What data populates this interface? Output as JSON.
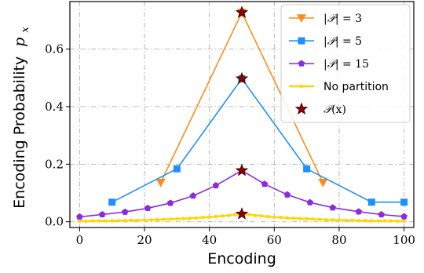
{
  "chart_data": {
    "type": "line",
    "xlabel": "Encoding",
    "ylabel": "Encoding Probability",
    "ylabel_math": "p",
    "ylabel_sub": "x",
    "xlim": [
      -3,
      103
    ],
    "ylim": [
      -0.02,
      0.765
    ],
    "xticks": [
      0,
      20,
      40,
      60,
      80,
      100
    ],
    "yticks": [
      0.0,
      0.2,
      0.4,
      0.6
    ],
    "xtick_labels": [
      "0",
      "20",
      "40",
      "60",
      "80",
      "100"
    ],
    "ytick_labels": [
      "0.0",
      "0.2",
      "0.4",
      "0.6"
    ],
    "grid": true,
    "legend_position": "top-right",
    "series": [
      {
        "name": "|𝒫| = 3",
        "color": "#ff8c1a",
        "marker": "triangle-down",
        "x": [
          25,
          50,
          75
        ],
        "values": [
          0.136,
          0.727,
          0.136
        ]
      },
      {
        "name": "|𝒫| = 5",
        "color": "#1e90ff",
        "marker": "square",
        "x": [
          10,
          30,
          50,
          70,
          90,
          100
        ],
        "values": [
          0.068,
          0.184,
          0.497,
          0.184,
          0.068,
          0.068
        ]
      },
      {
        "name": "|𝒫| = 15",
        "color": "#8a2be2",
        "marker": "pentagon",
        "x": [
          0,
          7,
          14,
          21,
          28,
          35,
          42,
          50,
          57,
          64,
          71,
          78,
          86,
          93,
          100
        ],
        "values": [
          0.017,
          0.025,
          0.034,
          0.047,
          0.065,
          0.09,
          0.126,
          0.178,
          0.131,
          0.094,
          0.067,
          0.049,
          0.035,
          0.025,
          0.018
        ]
      },
      {
        "name": "No partition",
        "color": "#ffd700",
        "marker": "dot",
        "x": [
          0,
          2,
          4,
          6,
          8,
          10,
          12,
          14,
          16,
          18,
          20,
          22,
          24,
          26,
          28,
          30,
          32,
          34,
          36,
          38,
          40,
          42,
          44,
          46,
          48,
          50,
          52,
          54,
          56,
          58,
          60,
          62,
          64,
          66,
          68,
          70,
          72,
          74,
          76,
          78,
          80,
          82,
          84,
          86,
          88,
          90,
          92,
          94,
          96,
          98,
          100
        ],
        "values": [
          0.002,
          0.002,
          0.003,
          0.003,
          0.003,
          0.003,
          0.004,
          0.004,
          0.005,
          0.005,
          0.006,
          0.006,
          0.007,
          0.008,
          0.009,
          0.01,
          0.011,
          0.012,
          0.013,
          0.015,
          0.016,
          0.018,
          0.02,
          0.022,
          0.025,
          0.027,
          0.025,
          0.022,
          0.02,
          0.018,
          0.016,
          0.015,
          0.013,
          0.012,
          0.011,
          0.01,
          0.009,
          0.008,
          0.007,
          0.006,
          0.006,
          0.005,
          0.005,
          0.004,
          0.004,
          0.003,
          0.003,
          0.003,
          0.003,
          0.002,
          0.002
        ]
      },
      {
        "name": "𝒫(x)",
        "color": "#8b0000",
        "marker": "star",
        "x": [
          50,
          50,
          50,
          50
        ],
        "values": [
          0.727,
          0.497,
          0.178,
          0.027
        ]
      }
    ]
  },
  "legend": {
    "items": [
      {
        "prefix": "|",
        "sym": "𝒫",
        "suffix": "| = 3",
        "sans": false
      },
      {
        "prefix": "|",
        "sym": "𝒫",
        "suffix": "| = 5",
        "sans": false
      },
      {
        "prefix": "|",
        "sym": "𝒫",
        "suffix": "| = 15",
        "sans": false
      },
      {
        "prefix": "No partition",
        "sym": "",
        "suffix": "",
        "sans": true
      },
      {
        "prefix": "",
        "sym": "𝒫",
        "suffix": "(x)",
        "sans": false
      }
    ]
  }
}
